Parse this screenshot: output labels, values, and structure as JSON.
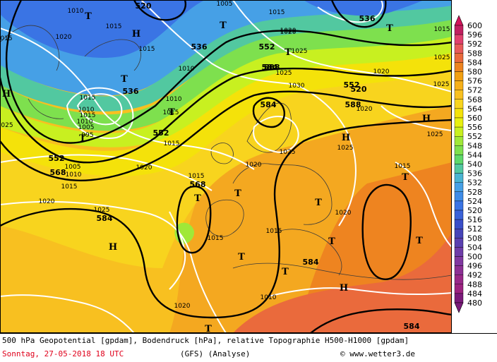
{
  "caption": {
    "line1": "500 hPa Geopotential [gpdam], Bodendruck [hPa], relative Topographie H500-H1000 [gpdam]",
    "date": "Sonntag, 27-05-2018  18 UTC",
    "model": "(GFS)  (Analyse)",
    "copyright": "© www.wetter3.de"
  },
  "legend": {
    "levels": [
      600,
      596,
      592,
      588,
      584,
      580,
      576,
      572,
      568,
      564,
      560,
      556,
      552,
      548,
      544,
      540,
      536,
      532,
      528,
      524,
      520,
      516,
      512,
      508,
      504,
      500,
      496,
      492,
      488,
      484,
      480
    ],
    "colors": [
      "#d4145a",
      "#c02060",
      "#e0406e",
      "#e85a5a",
      "#ea6a3c",
      "#ee8420",
      "#f2a012",
      "#f6b01a",
      "#f8c020",
      "#f8d41e",
      "#f4e20a",
      "#e8f010",
      "#c8f020",
      "#a0e838",
      "#7ee04e",
      "#5ed86a",
      "#52c8a0",
      "#4ab4d2",
      "#46a0e6",
      "#3e8ce8",
      "#3a74e4",
      "#3a62d8",
      "#3a4ec8",
      "#4644b8",
      "#5a40b0",
      "#6e3ca8",
      "#8038a0",
      "#8c3094",
      "#982888",
      "#9c2280",
      "#7a1a7a"
    ]
  },
  "map": {
    "geopotential_labels": [
      "520",
      "536",
      "552",
      "588",
      "520",
      "536",
      "552",
      "588",
      "552",
      "536",
      "584",
      "552",
      "568",
      "584",
      "568",
      "584",
      "584",
      "584"
    ],
    "pressure_labels": [
      "1010",
      "1015",
      "1020",
      "1015",
      "1005",
      "1010",
      "1015",
      "1020",
      "1025",
      "1015",
      "1010",
      "1015",
      "1010",
      "1015",
      "1010",
      "1005",
      "995",
      "1015",
      "1005",
      "1010",
      "1020",
      "1025",
      "1030",
      "1020",
      "1020",
      "1025",
      "1020",
      "1025",
      "1025",
      "1015",
      "1020",
      "1015",
      "1015",
      "1020",
      "1025",
      "1015",
      "1010",
      "1025",
      "1020",
      "1015",
      "1025",
      "015",
      "1020",
      "025",
      "1015"
    ],
    "centers": [
      {
        "label": "H",
        "role": "high"
      },
      {
        "label": "T",
        "role": "low"
      },
      {
        "label": "T",
        "role": "low"
      },
      {
        "label": "T",
        "role": "low"
      },
      {
        "label": "T",
        "role": "low"
      },
      {
        "label": "T",
        "role": "low"
      },
      {
        "label": "T",
        "role": "low"
      },
      {
        "label": "H",
        "role": "high"
      },
      {
        "label": "H",
        "role": "high"
      },
      {
        "label": "H",
        "role": "high"
      },
      {
        "label": "T",
        "role": "low"
      },
      {
        "label": "T",
        "role": "low"
      },
      {
        "label": "T",
        "role": "low"
      },
      {
        "label": "T",
        "role": "low"
      },
      {
        "label": "T",
        "role": "low"
      },
      {
        "label": "T",
        "role": "low"
      },
      {
        "label": "H",
        "role": "high"
      },
      {
        "label": "T",
        "role": "low"
      },
      {
        "label": "T",
        "role": "low"
      },
      {
        "label": "H",
        "role": "high"
      },
      {
        "label": "T",
        "role": "low"
      },
      {
        "label": "T",
        "role": "low"
      }
    ]
  }
}
